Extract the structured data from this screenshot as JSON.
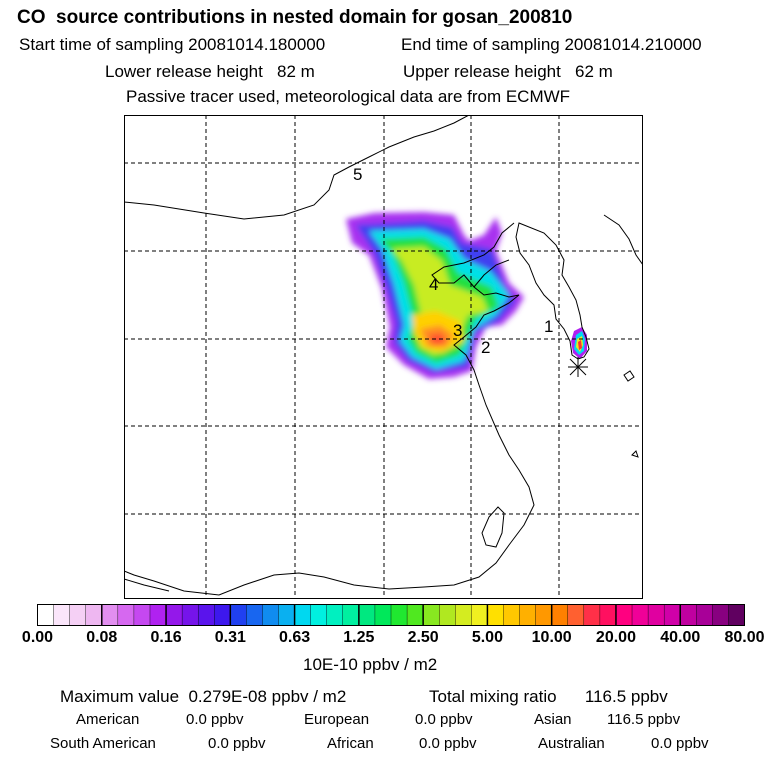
{
  "header": {
    "title": "CO  source contributions in nested domain for gosan_200810",
    "start_label": "Start time of sampling 20081014.180000",
    "end_label": "End time of sampling 20081014.210000",
    "lower_label": "Lower release height   82 m",
    "upper_label": "Upper release height   62 m",
    "note": "Passive tracer used, meteorological data are from ECMWF"
  },
  "map": {
    "markers": [
      "1",
      "2",
      "3",
      "4",
      "5"
    ],
    "station_symbol": "star-marker"
  },
  "colorbar": {
    "tick_labels": [
      "0.00",
      "0.08",
      "0.16",
      "0.31",
      "0.63",
      "1.25",
      "2.50",
      "5.00",
      "10.00",
      "20.00",
      "40.00",
      "80.00"
    ],
    "unit": "10E-10 ppbv / m2",
    "colors": [
      "#ffffff",
      "#fbe6fb",
      "#f5d0f5",
      "#eeb7f1",
      "#e28ef0",
      "#d668f0",
      "#c548f0",
      "#b022f0",
      "#9418ea",
      "#7614ea",
      "#5a14ec",
      "#3d18ee",
      "#2040f0",
      "#1866f0",
      "#108cf0",
      "#0ab0f0",
      "#00d8f0",
      "#00f0e0",
      "#00f0c0",
      "#00f0a0",
      "#00e880",
      "#00e85a",
      "#20e830",
      "#50e820",
      "#88e820",
      "#b0e820",
      "#d4ec20",
      "#f0f020",
      "#ffe000",
      "#ffc800",
      "#ffb000",
      "#ff9800",
      "#ff8000",
      "#ff6030",
      "#ff3048",
      "#ff1060",
      "#ff0080",
      "#f00098",
      "#e000a0",
      "#d000a8",
      "#c000a0",
      "#a80098",
      "#880080",
      "#600060"
    ]
  },
  "stats": {
    "max_label": "Maximum value  0.279E-08 ppbv / m2",
    "total_label": "Total mixing ratio      116.5 ppbv",
    "regions": [
      {
        "name": "American",
        "value": "0.0 ppbv"
      },
      {
        "name": "European",
        "value": "0.0 ppbv"
      },
      {
        "name": "Asian",
        "value": "116.5 ppbv"
      },
      {
        "name": "South American",
        "value": "0.0 ppbv"
      },
      {
        "name": "African",
        "value": "0.0 ppbv"
      },
      {
        "name": "Australian",
        "value": "0.0 ppbv"
      }
    ]
  }
}
